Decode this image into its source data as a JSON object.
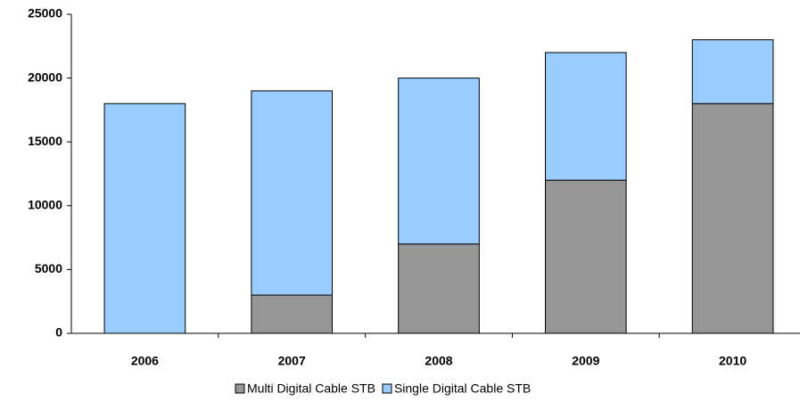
{
  "chart_data": {
    "type": "stacked_bar",
    "categories": [
      "2006",
      "2007",
      "2008",
      "2009",
      "2010"
    ],
    "series": [
      {
        "name": "Multi Digital Cable STB",
        "color": "#969696",
        "values": [
          0,
          3000,
          7000,
          12000,
          18000
        ]
      },
      {
        "name": "Single Digital Cable STB",
        "color": "#99ccff",
        "values": [
          18000,
          16000,
          13000,
          10000,
          5000
        ]
      }
    ],
    "ylim": [
      0,
      25000
    ],
    "yticks": [
      0,
      5000,
      10000,
      15000,
      20000,
      25000
    ],
    "legend": "bottom"
  }
}
